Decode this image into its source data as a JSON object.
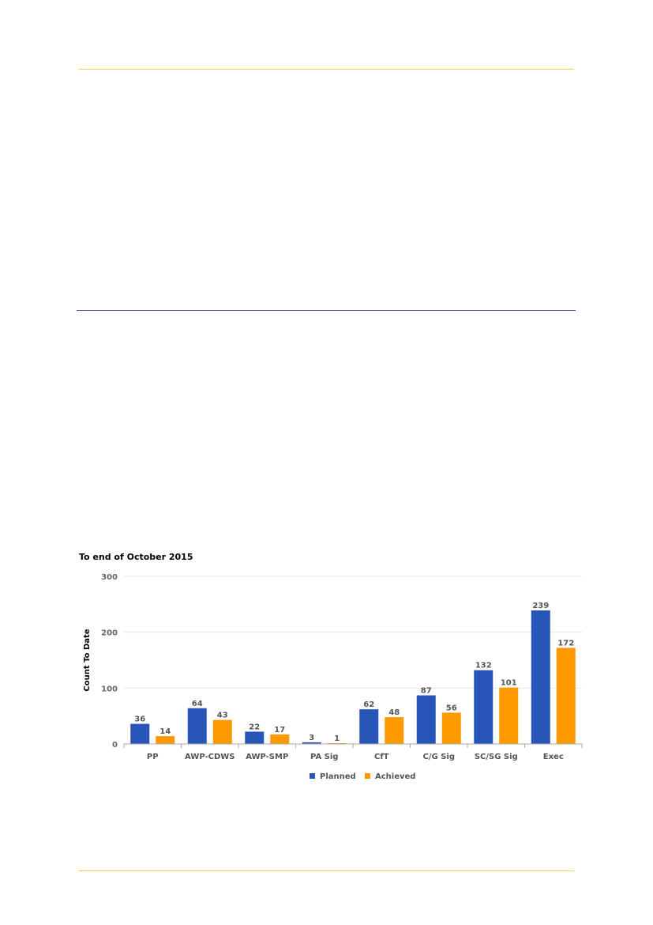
{
  "chart_data": {
    "type": "bar",
    "title": "To end of October 2015",
    "ylabel": "Count To Date",
    "xlabel": "",
    "ylim": [
      0,
      300
    ],
    "yticks": [
      0,
      100,
      200,
      300
    ],
    "grid": true,
    "legend_position": "bottom",
    "categories": [
      "PP",
      "AWP-CDWS",
      "AWP-SMP",
      "PA Sig",
      "CfT",
      "C/G Sig",
      "SC/SG Sig",
      "Exec"
    ],
    "series": [
      {
        "name": "Planned",
        "color": "#2855b8",
        "values": [
          36,
          64,
          22,
          3,
          62,
          87,
          132,
          239
        ]
      },
      {
        "name": "Achieved",
        "color": "#ff9900",
        "values": [
          14,
          43,
          17,
          1,
          48,
          56,
          101,
          172
        ]
      }
    ]
  }
}
